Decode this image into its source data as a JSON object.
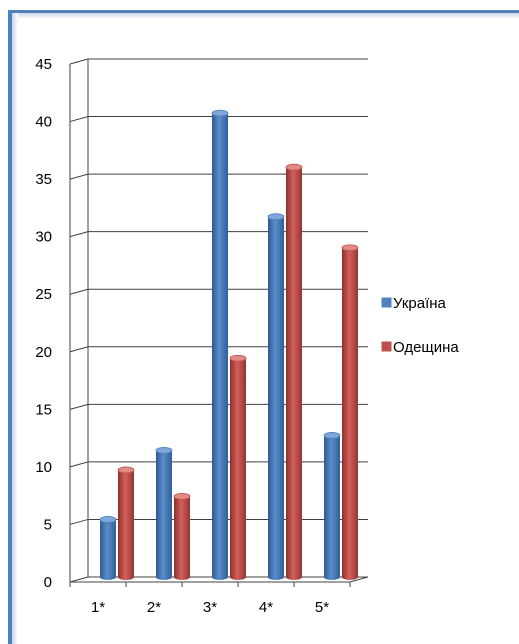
{
  "chart_data": {
    "type": "bar",
    "title": "",
    "xlabel": "",
    "ylabel": "",
    "categories": [
      "1*",
      "2*",
      "3*",
      "4*",
      "5*"
    ],
    "ylim": [
      0,
      45
    ],
    "yticks": [
      0,
      5,
      10,
      15,
      20,
      25,
      30,
      35,
      40,
      45
    ],
    "grid": true,
    "legend_position": "right",
    "series": [
      {
        "name": "Україна",
        "values": [
          5,
          11,
          40.3,
          31.3,
          12.3
        ],
        "color": "#4f81bd"
      },
      {
        "name": "Одещина",
        "values": [
          9.3,
          7,
          19,
          35.6,
          28.6
        ],
        "color": "#c0504d"
      }
    ]
  }
}
